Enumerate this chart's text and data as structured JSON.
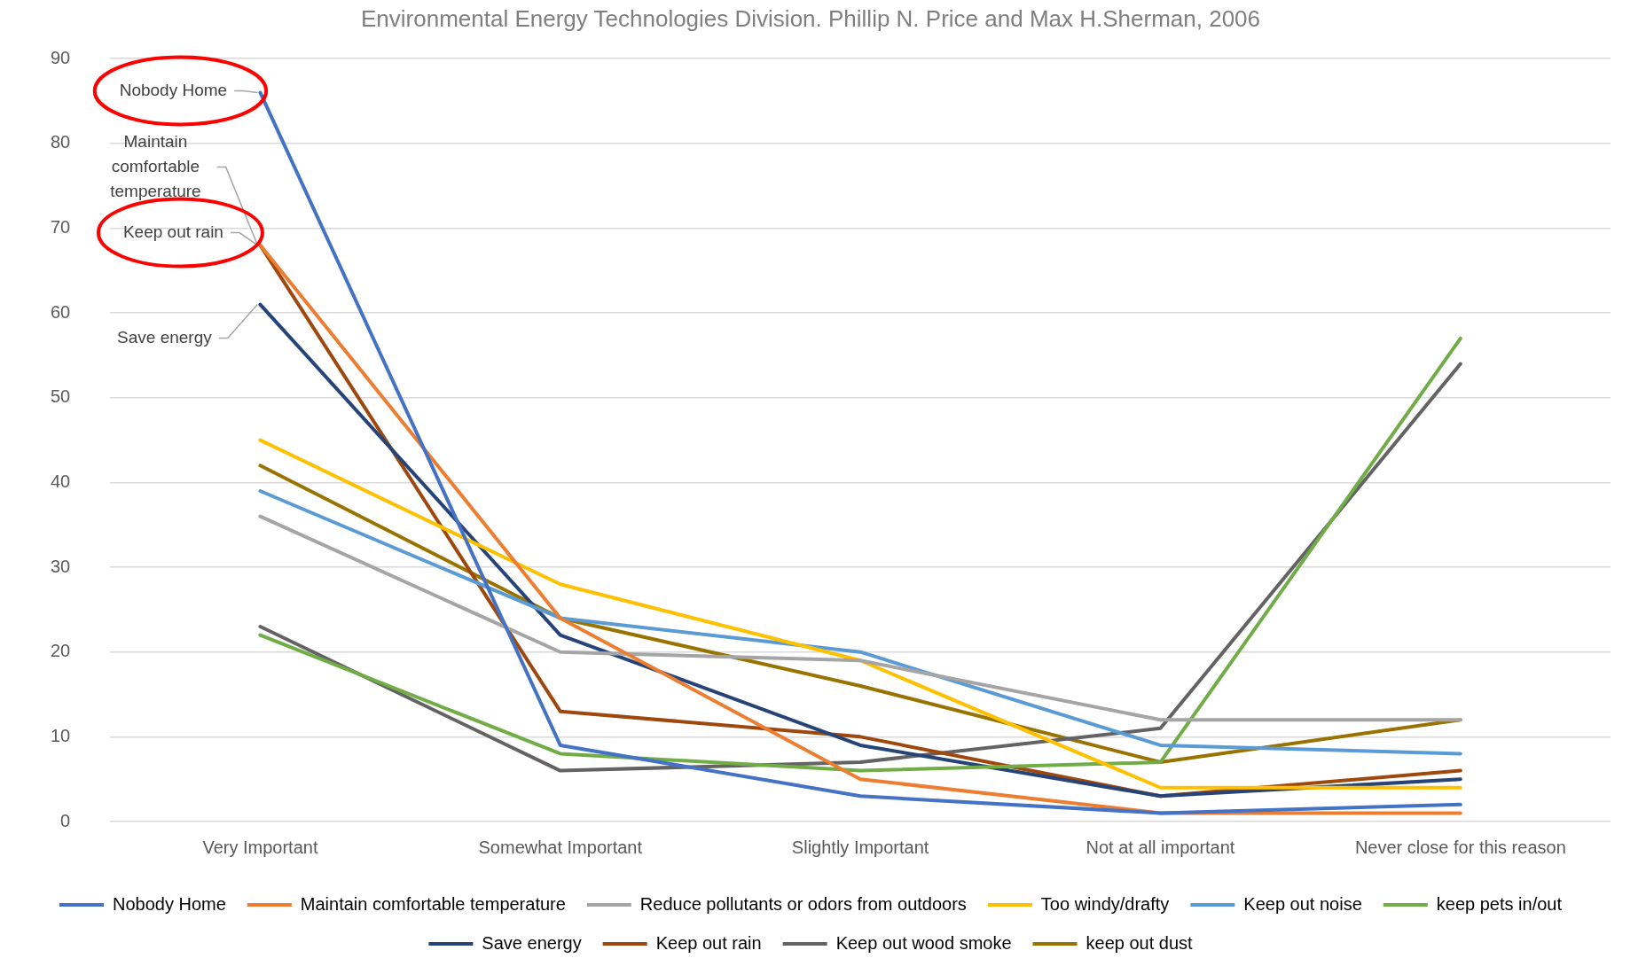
{
  "chart_data": {
    "type": "line",
    "title": "Environmental Energy Technologies Division. Phillip N. Price and Max H.Sherman, 2006",
    "categories": [
      "Very Important",
      "Somewhat Important",
      "Slightly Important",
      "Not at all important",
      "Never close for this reason"
    ],
    "series": [
      {
        "name": "Nobody Home",
        "color": "#4472c4",
        "values": [
          86,
          9,
          3,
          1,
          2
        ]
      },
      {
        "name": "Maintain comfortable temperature",
        "color": "#ed7d31",
        "values": [
          68,
          24,
          5,
          1,
          1
        ]
      },
      {
        "name": "Reduce pollutants or odors from outdoors",
        "color": "#a5a5a5",
        "values": [
          36,
          20,
          19,
          12,
          12
        ]
      },
      {
        "name": "Too windy/drafty",
        "color": "#ffc000",
        "values": [
          45,
          28,
          19,
          4,
          4
        ]
      },
      {
        "name": "Keep out noise",
        "color": "#5b9bd5",
        "values": [
          39,
          24,
          20,
          9,
          8
        ]
      },
      {
        "name": "keep pets in/out",
        "color": "#70ad47",
        "values": [
          22,
          8,
          6,
          7,
          57
        ]
      },
      {
        "name": "Save energy",
        "color": "#264478",
        "values": [
          61,
          22,
          9,
          3,
          5
        ]
      },
      {
        "name": "Keep out rain",
        "color": "#9e480e",
        "values": [
          68,
          13,
          10,
          3,
          6
        ]
      },
      {
        "name": "Keep out wood smoke",
        "color": "#636363",
        "values": [
          23,
          6,
          7,
          11,
          54
        ]
      },
      {
        "name": "keep out dust",
        "color": "#997300",
        "values": [
          42,
          24,
          16,
          7,
          12
        ]
      }
    ],
    "ylim": [
      0,
      90
    ],
    "yticks": [
      0,
      10,
      20,
      30,
      40,
      50,
      60,
      70,
      80,
      90
    ],
    "grid": "y",
    "legend": "bottom",
    "marker": "none",
    "line_style": "solid",
    "annotations": [
      {
        "text": "Nobody Home",
        "x": "Very Important",
        "y": 86
      },
      {
        "text": "Maintain comfortable temperature",
        "x": "Very Important",
        "y": 68
      },
      {
        "text": "Keep out rain",
        "x": "Very Important",
        "y": 68
      },
      {
        "text": "Save energy",
        "x": "Very Important",
        "y": 61
      }
    ]
  }
}
